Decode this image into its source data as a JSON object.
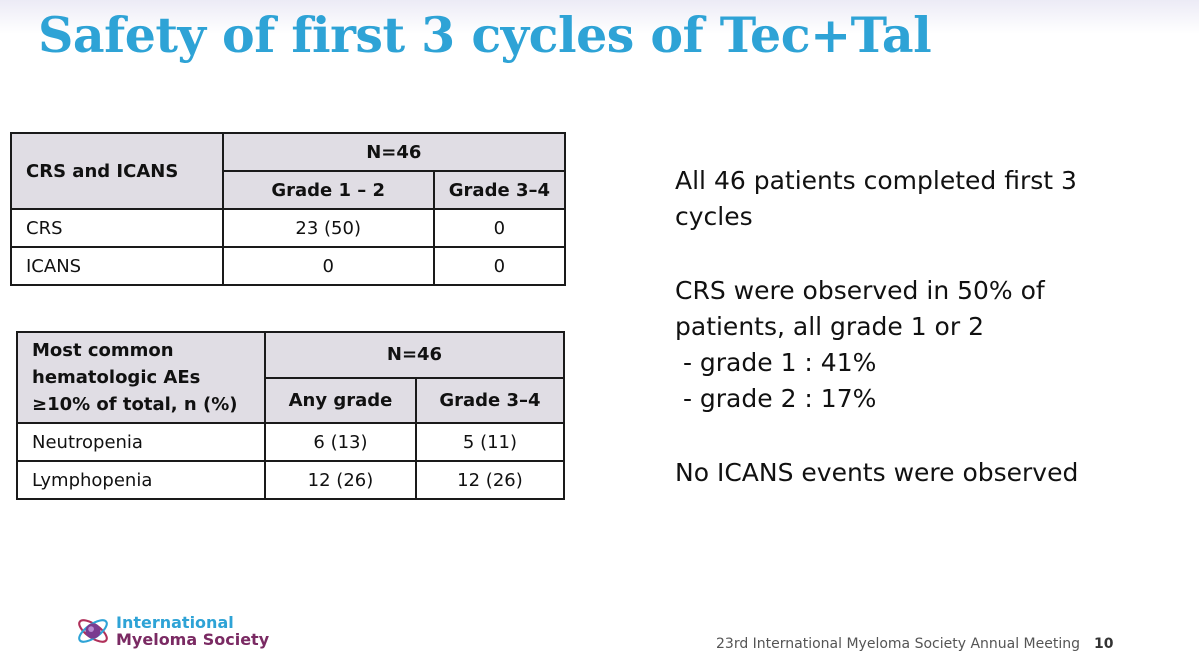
{
  "slide": {
    "title": "Safety of first 3 cycles of Tec+Tal",
    "table1": {
      "corner": "CRS and ICANS",
      "n": "N=46",
      "col1": "Grade 1 – 2",
      "col2": "Grade 3–4",
      "rows": [
        {
          "label": "CRS",
          "v1": "23 (50)",
          "v2": "0"
        },
        {
          "label": "ICANS",
          "v1": "0",
          "v2": "0"
        }
      ]
    },
    "table2": {
      "corner_l1": "Most common",
      "corner_l2": "hematologic AEs",
      "corner_l3": "≥10% of total, n (%)",
      "n": "N=46",
      "col1": "Any grade",
      "col2": "Grade 3–4",
      "rows": [
        {
          "label": "Neutropenia",
          "v1": "6 (13)",
          "v2": "5 (11)"
        },
        {
          "label": "Lymphopenia",
          "v1": "12 (26)",
          "v2": "12 (26)"
        }
      ]
    },
    "notes": {
      "p1": "All 46 patients completed first 3 cycles",
      "p2": "CRS were observed in 50% of patients, all grade 1 or 2",
      "p2a": " - grade 1 : 41%",
      "p2b": " - grade 2 : 17%",
      "p3": "No ICANS events were observed"
    },
    "logo": {
      "line1": "International",
      "line2": "Myeloma Society"
    },
    "footer": {
      "text": "23rd International Myeloma Society Annual Meeting",
      "page": "10"
    }
  }
}
